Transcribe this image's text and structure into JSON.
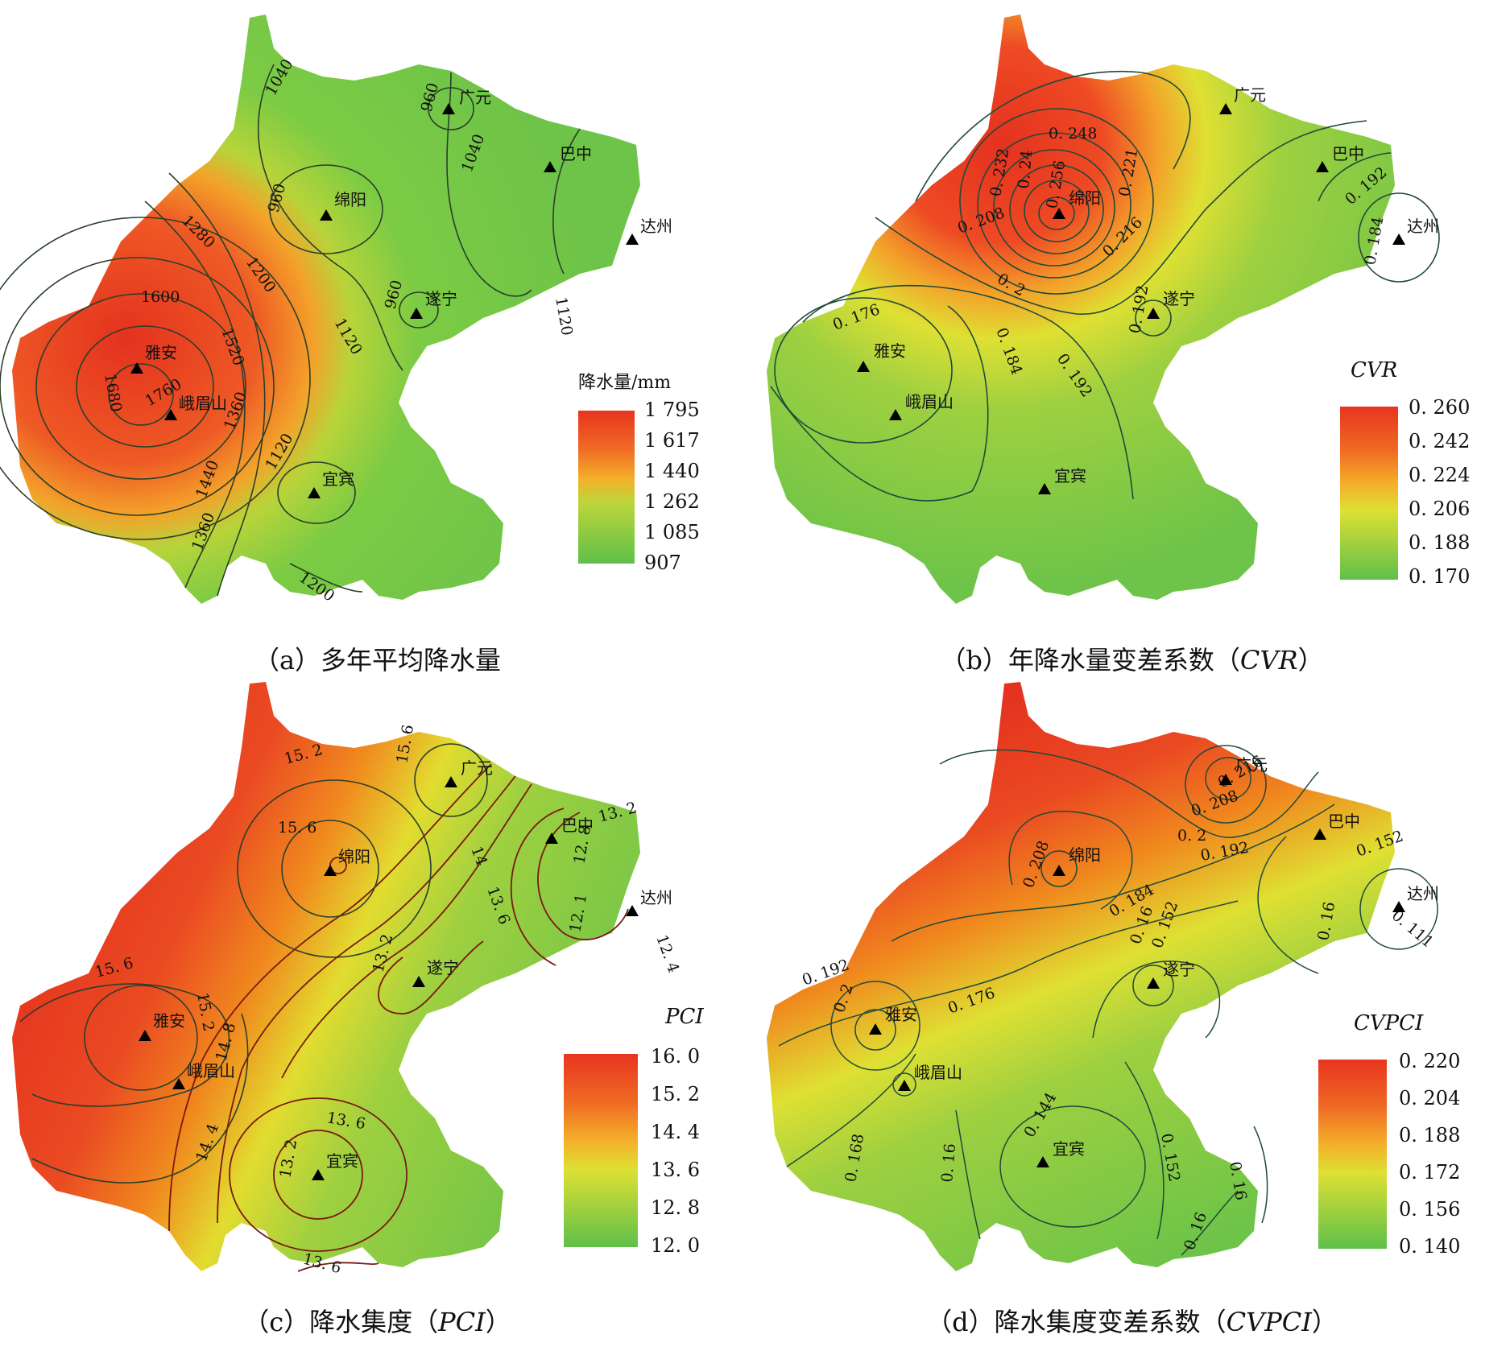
{
  "panels": [
    {
      "id": "a",
      "caption_prefix": "（a）",
      "caption_main": "多年平均降水量",
      "caption_italic": "",
      "caption_suffix": "",
      "legend_title": "降水量/mm",
      "legend_italic": false,
      "legend_ticks": [
        "1 795",
        "1 617",
        "1 440",
        "1 262",
        "1 085",
        "907"
      ],
      "contour_labels": [
        "1040",
        "960",
        "960",
        "1040",
        "960",
        "1280",
        "1200",
        "1120",
        "1600",
        "1520",
        "1680",
        "1760",
        "1360",
        "1440",
        "1120",
        "1120",
        "1360",
        "1200"
      ],
      "high_region": "west"
    },
    {
      "id": "b",
      "caption_prefix": "（b）",
      "caption_main": "年降水量变差系数（",
      "caption_italic": "CVR",
      "caption_suffix": "）",
      "legend_title": "CVR",
      "legend_italic": true,
      "legend_ticks": [
        "0. 260",
        "0. 242",
        "0. 224",
        "0. 206",
        "0. 188",
        "0. 170"
      ],
      "contour_labels": [
        "0. 232",
        "0. 24",
        "0. 248",
        "0. 256",
        "0. 221",
        "0. 208",
        "0. 216",
        "0. 2",
        "0. 192",
        "0. 184",
        "0. 176",
        "0. 184",
        "0. 192",
        "0. 192"
      ],
      "high_region": "north"
    },
    {
      "id": "c",
      "caption_prefix": "（c）",
      "caption_main": "降水集度（",
      "caption_italic": "PCI",
      "caption_suffix": "）",
      "legend_title": "PCI",
      "legend_italic": true,
      "legend_ticks": [
        "16. 0",
        "15. 2",
        "14. 4",
        "13. 6",
        "12. 8",
        "12. 0"
      ],
      "contour_labels": [
        "15. 2",
        "15. 6",
        "15. 6",
        "13. 2",
        "14",
        "12. 8",
        "13. 6",
        "12. 1",
        "12. 4",
        "15. 6",
        "15. 2",
        "14. 8",
        "13. 2",
        "14. 4",
        "13. 6",
        "13. 2",
        "13. 6"
      ],
      "high_region": "west"
    },
    {
      "id": "d",
      "caption_prefix": "（d）",
      "caption_main": "降水集度变差系数（",
      "caption_italic": "CVPCI",
      "caption_suffix": "）",
      "legend_title": "CVPCI",
      "legend_italic": true,
      "legend_ticks": [
        "0. 220",
        "0. 204",
        "0. 188",
        "0. 172",
        "0. 156",
        "0. 140"
      ],
      "contour_labels": [
        "0. 216",
        "0. 208",
        "0. 2",
        "0. 208",
        "0. 192",
        "0. 152",
        "0. 184",
        "0. 16",
        "0. 111",
        "0. 192",
        "0. 2",
        "0. 176",
        "0. 16",
        "0. 152",
        "0. 168",
        "0. 16",
        "0. 144",
        "0. 152",
        "0. 16",
        "0. 16"
      ],
      "high_region": "north"
    }
  ],
  "cities": [
    "广元",
    "巴中",
    "绵阳",
    "达州",
    "遂宁",
    "雅安",
    "峨眉山",
    "宜宾"
  ],
  "colors": {
    "high": "#e8402a",
    "mid_high": "#f08a1e",
    "mid": "#e8d82a",
    "mid_low": "#9fd040",
    "low": "#5fc04a",
    "contour": "#1f4a3a",
    "contour_dark": "#7a1a12"
  }
}
